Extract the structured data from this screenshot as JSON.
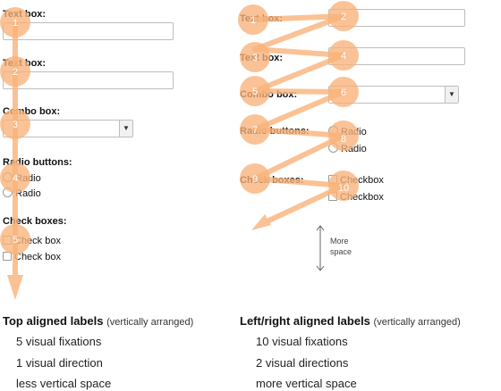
{
  "left": {
    "fields": [
      {
        "label": "Text box:"
      },
      {
        "label": "Text box:"
      },
      {
        "label": "Combo box:"
      },
      {
        "label": "Radio buttons:",
        "options": [
          "Radio",
          "Radio"
        ]
      },
      {
        "label": "Check boxes:",
        "options": [
          "Check box",
          "Check box"
        ]
      }
    ],
    "fixation_numbers": [
      "1",
      "2",
      "3",
      "4",
      "5"
    ],
    "heading": "Top aligned labels",
    "heading_note": "(vertically arranged)",
    "points": [
      "5 visual fixations",
      "1 visual direction",
      "less vertical space"
    ]
  },
  "right": {
    "fields": [
      {
        "label": "Text box:"
      },
      {
        "label": "Text box:"
      },
      {
        "label": "Combo box:"
      },
      {
        "label": "Radio buttons:",
        "options": [
          "Radio",
          "Radio"
        ]
      },
      {
        "label": "Check boxes:",
        "options": [
          "Checkbox",
          "Checkbox"
        ]
      }
    ],
    "fixation_numbers": [
      "1",
      "2",
      "3",
      "4",
      "5",
      "6",
      "7",
      "8",
      "9",
      "10"
    ],
    "more_space_note": "More space",
    "heading": "Left/right aligned labels",
    "heading_note": "(vertically arranged)",
    "points": [
      "10 visual fixations",
      "2 visual directions",
      "more vertical space"
    ]
  },
  "colors": {
    "fixation": "#f9b37a",
    "text": "#111111",
    "input_border": "#bdbdbd"
  }
}
